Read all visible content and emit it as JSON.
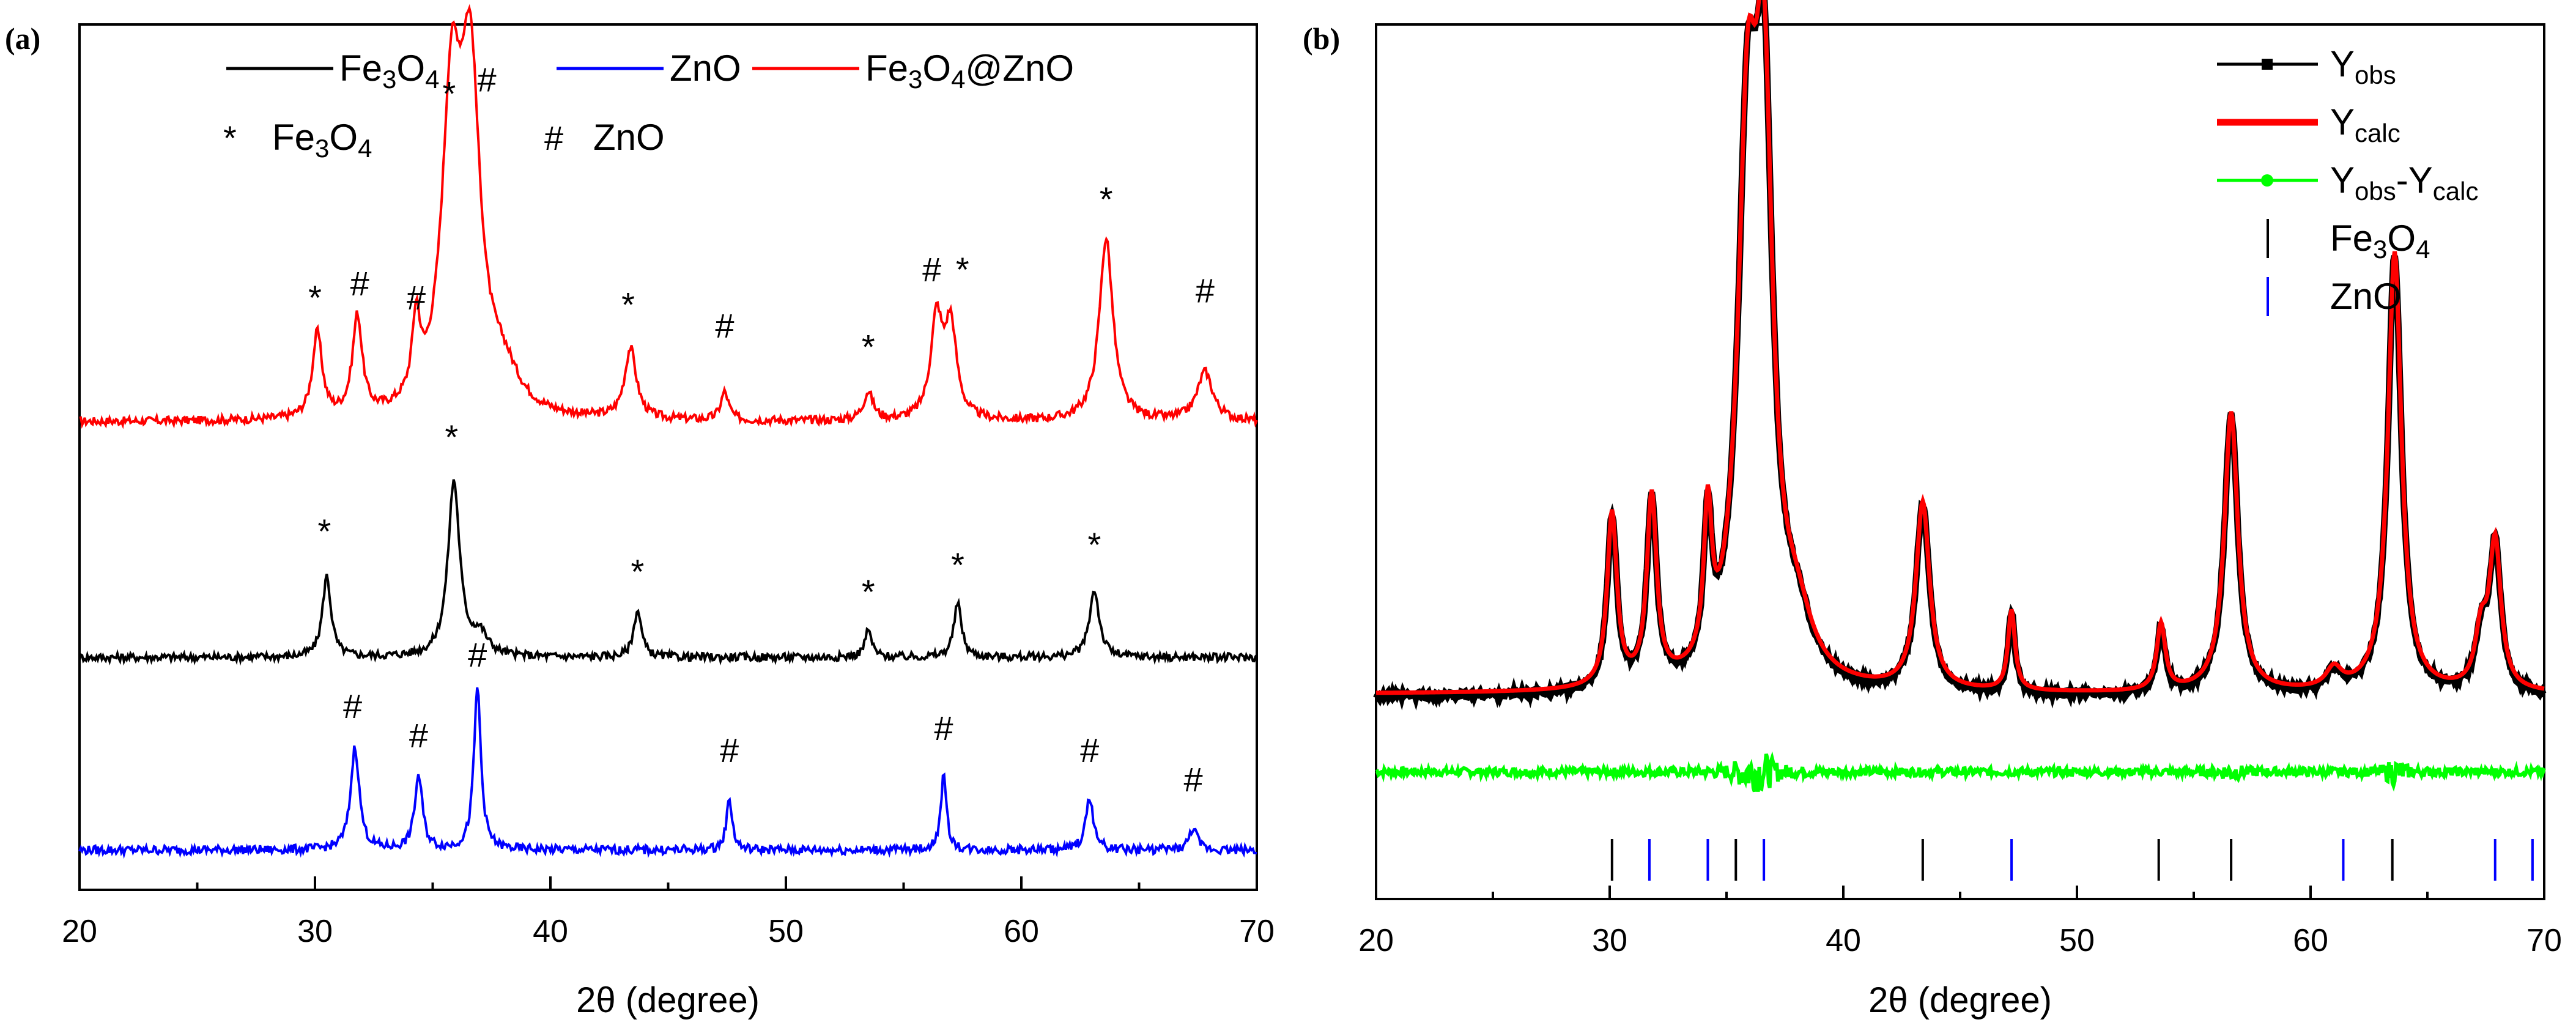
{
  "chart_data": [
    {
      "panel_label": "(a)",
      "type": "line",
      "xlabel": "2θ (degree)",
      "ylabel": "",
      "xlim": [
        20,
        70
      ],
      "x_ticks": [
        "20",
        "30",
        "40",
        "50",
        "60",
        "70"
      ],
      "legend": [
        {
          "name": "Fe3O4",
          "main": "Fe",
          "sub1": "3",
          "mid": "O",
          "sub2": "4",
          "tail": "",
          "color": "#000000"
        },
        {
          "name": "ZnO",
          "main": "ZnO",
          "sub1": "",
          "mid": "",
          "sub2": "",
          "tail": "",
          "color": "#0000ff"
        },
        {
          "name": "Fe3O4@ZnO",
          "main": "Fe",
          "sub1": "3",
          "mid": "O",
          "sub2": "4",
          "tail": "@ZnO",
          "color": "#ff0000"
        }
      ],
      "marker_legend": [
        {
          "symbol": "*",
          "main": "Fe",
          "sub1": "3",
          "mid": "O",
          "sub2": "4"
        },
        {
          "symbol": "#",
          "main": "ZnO",
          "sub1": "",
          "mid": "",
          "sub2": ""
        }
      ],
      "series": [
        {
          "name": "Fe3O4@ZnO",
          "color": "#ff0000",
          "baseline": 0.0,
          "peaks": [
            [
              30.1,
              0.12,
              0.25
            ],
            [
              31.8,
              0.14,
              0.25
            ],
            [
              34.3,
              0.11,
              0.2
            ],
            [
              35.8,
              0.42,
              0.5
            ],
            [
              36.6,
              0.45,
              0.5
            ],
            [
              38.0,
              0.05,
              0.8
            ],
            [
              43.4,
              0.1,
              0.3
            ],
            [
              47.4,
              0.04,
              0.2
            ],
            [
              53.5,
              0.04,
              0.25
            ],
            [
              56.4,
              0.14,
              0.3
            ],
            [
              57.0,
              0.13,
              0.3
            ],
            [
              63.6,
              0.26,
              0.35
            ],
            [
              67.8,
              0.07,
              0.4
            ]
          ],
          "markers": [
            {
              "x": 30.0,
              "y": 0.16,
              "symbol": "*"
            },
            {
              "x": 31.9,
              "y": 0.18,
              "symbol": "#"
            },
            {
              "x": 34.3,
              "y": 0.16,
              "symbol": "#"
            },
            {
              "x": 35.7,
              "y": 0.45,
              "symbol": "*"
            },
            {
              "x": 37.3,
              "y": 0.47,
              "symbol": "#"
            },
            {
              "x": 43.3,
              "y": 0.15,
              "symbol": "*"
            },
            {
              "x": 47.4,
              "y": 0.12,
              "symbol": "#"
            },
            {
              "x": 53.5,
              "y": 0.09,
              "symbol": "*"
            },
            {
              "x": 56.2,
              "y": 0.2,
              "symbol": "#"
            },
            {
              "x": 57.5,
              "y": 0.2,
              "symbol": "*"
            },
            {
              "x": 63.6,
              "y": 0.3,
              "symbol": "*"
            },
            {
              "x": 67.8,
              "y": 0.17,
              "symbol": "#"
            }
          ]
        },
        {
          "name": "Fe3O4",
          "color": "#000000",
          "baseline": 0.0,
          "peaks": [
            [
              30.5,
              0.12,
              0.22
            ],
            [
              35.9,
              0.26,
              0.3
            ],
            [
              37.0,
              0.03,
              0.4
            ],
            [
              43.7,
              0.07,
              0.2
            ],
            [
              53.5,
              0.04,
              0.18
            ],
            [
              57.3,
              0.08,
              0.2
            ],
            [
              63.1,
              0.1,
              0.25
            ]
          ],
          "markers": [
            {
              "x": 30.4,
              "y": 0.17,
              "symbol": "*"
            },
            {
              "x": 35.8,
              "y": 0.31,
              "symbol": "*"
            },
            {
              "x": 43.7,
              "y": 0.11,
              "symbol": "*"
            },
            {
              "x": 53.5,
              "y": 0.08,
              "symbol": "*"
            },
            {
              "x": 57.3,
              "y": 0.12,
              "symbol": "*"
            },
            {
              "x": 63.1,
              "y": 0.15,
              "symbol": "*"
            }
          ]
        },
        {
          "name": "ZnO",
          "color": "#0000ff",
          "baseline": 0.0,
          "peaks": [
            [
              31.7,
              0.14,
              0.22
            ],
            [
              34.4,
              0.1,
              0.2
            ],
            [
              36.9,
              0.22,
              0.18
            ],
            [
              47.6,
              0.07,
              0.15
            ],
            [
              56.7,
              0.1,
              0.15
            ],
            [
              62.9,
              0.07,
              0.2
            ],
            [
              67.3,
              0.03,
              0.2
            ]
          ],
          "markers": [
            {
              "x": 31.6,
              "y": 0.18,
              "symbol": "#"
            },
            {
              "x": 34.4,
              "y": 0.14,
              "symbol": "#"
            },
            {
              "x": 36.9,
              "y": 0.25,
              "symbol": "#"
            },
            {
              "x": 47.6,
              "y": 0.12,
              "symbol": "#"
            },
            {
              "x": 56.7,
              "y": 0.15,
              "symbol": "#"
            },
            {
              "x": 62.9,
              "y": 0.12,
              "symbol": "#"
            },
            {
              "x": 67.3,
              "y": 0.08,
              "symbol": "#"
            }
          ]
        }
      ]
    },
    {
      "panel_label": "(b)",
      "type": "line",
      "xlabel": "2θ (degree)",
      "ylabel": "",
      "xlim": [
        20,
        70
      ],
      "x_ticks": [
        "20",
        "30",
        "40",
        "50",
        "60",
        "70"
      ],
      "legend": [
        {
          "name": "Yobs",
          "main": "Y",
          "sub": "obs",
          "tail": "",
          "tailsub": "",
          "color": "#000000",
          "style": "line-square"
        },
        {
          "name": "Ycalc",
          "main": "Y",
          "sub": "calc",
          "tail": "",
          "tailsub": "",
          "color": "#ff0000",
          "style": "thick-line"
        },
        {
          "name": "Yobs-Ycalc",
          "main": "Y",
          "sub": "obs",
          "tail": "-Y",
          "tailsub": "calc",
          "color": "#00ff00",
          "style": "line-dot"
        },
        {
          "name": "Fe3O4",
          "main": "Fe",
          "sub": "3",
          "tail": "O",
          "tailsub": "4",
          "color": "#000000",
          "style": "tick"
        },
        {
          "name": "ZnO",
          "main": "ZnO",
          "sub": "",
          "tail": "",
          "tailsub": "",
          "color": "#0000ff",
          "style": "tick"
        }
      ],
      "fit_peaks": [
        [
          30.1,
          0.26,
          0.25
        ],
        [
          31.8,
          0.28,
          0.25
        ],
        [
          34.2,
          0.22,
          0.2
        ],
        [
          35.9,
          0.75,
          0.5
        ],
        [
          36.6,
          0.78,
          0.45
        ],
        [
          38.0,
          0.08,
          0.8
        ],
        [
          43.4,
          0.28,
          0.35
        ],
        [
          47.2,
          0.12,
          0.18
        ],
        [
          53.6,
          0.1,
          0.22
        ],
        [
          56.6,
          0.42,
          0.35
        ],
        [
          61.0,
          0.03,
          0.4
        ],
        [
          63.6,
          0.66,
          0.35
        ],
        [
          67.3,
          0.08,
          0.3
        ],
        [
          67.9,
          0.22,
          0.3
        ]
      ],
      "reflections": {
        "Fe3O4": [
          30.1,
          35.4,
          43.4,
          53.5,
          56.6,
          63.5
        ],
        "ZnO": [
          31.7,
          34.2,
          36.6,
          47.2,
          61.4,
          67.9,
          69.5
        ]
      }
    }
  ]
}
